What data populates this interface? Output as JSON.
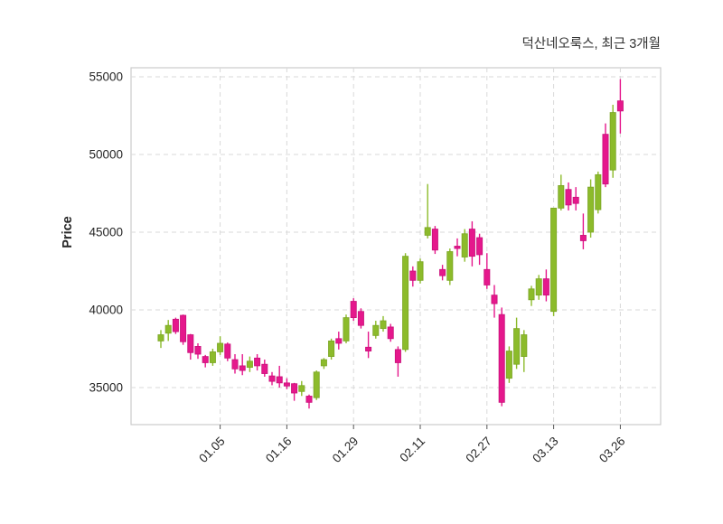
{
  "title": "덕산네오룩스, 최근 3개월",
  "y_axis": {
    "label": "Price",
    "ticks": [
      35000,
      40000,
      45000,
      50000,
      55000
    ]
  },
  "x_axis": {
    "tick_labels": [
      "01.05",
      "01.16",
      "01.29",
      "02.11",
      "02.27",
      "03.13",
      "03.26"
    ],
    "tick_indices": [
      8,
      17,
      26,
      35,
      44,
      53,
      62
    ]
  },
  "colors": {
    "up": "#8CBB2B",
    "up_border": "#7BA524",
    "down": "#E5188C",
    "down_border": "#C9107A",
    "grid": "#D9D9D9",
    "plot_border": "#CCCCCC",
    "text": "#262626"
  },
  "chart_data": {
    "type": "candlestick",
    "title": "덕산네오룩스, 최근 3개월",
    "ylabel": "Price",
    "ylim": [
      32600,
      55600
    ],
    "grid": "dashed-both",
    "columns": [
      "open",
      "high",
      "low",
      "close"
    ],
    "candles": [
      [
        38000,
        38700,
        37550,
        38400
      ],
      [
        38500,
        39350,
        38000,
        39000
      ],
      [
        39400,
        39500,
        38450,
        38600
      ],
      [
        39650,
        39700,
        37750,
        37950
      ],
      [
        38400,
        38450,
        36800,
        37250
      ],
      [
        37650,
        37850,
        36850,
        37150
      ],
      [
        37000,
        37100,
        36300,
        36600
      ],
      [
        36600,
        37500,
        36400,
        37300
      ],
      [
        37300,
        38300,
        37100,
        37850
      ],
      [
        37800,
        37900,
        36700,
        36900
      ],
      [
        36800,
        37150,
        35900,
        36200
      ],
      [
        36400,
        37150,
        35800,
        36100
      ],
      [
        36300,
        37000,
        36000,
        36700
      ],
      [
        36900,
        37150,
        36100,
        36400
      ],
      [
        36500,
        36800,
        35700,
        35900
      ],
      [
        35750,
        36000,
        35150,
        35400
      ],
      [
        35700,
        36400,
        35000,
        35300
      ],
      [
        35300,
        35600,
        34900,
        35100
      ],
      [
        35250,
        35300,
        34150,
        34650
      ],
      [
        34750,
        35420,
        34460,
        35130
      ],
      [
        34450,
        34550,
        33650,
        34050
      ],
      [
        34350,
        36100,
        34200,
        36000
      ],
      [
        36400,
        36900,
        36200,
        36800
      ],
      [
        37000,
        38150,
        36800,
        38000
      ],
      [
        38150,
        38600,
        37450,
        37850
      ],
      [
        38000,
        39700,
        37850,
        39500
      ],
      [
        40550,
        40750,
        39300,
        39500
      ],
      [
        39900,
        40100,
        38800,
        39000
      ],
      [
        37600,
        38600,
        36900,
        37350
      ],
      [
        38350,
        39300,
        38150,
        39000
      ],
      [
        38800,
        39600,
        38600,
        39300
      ],
      [
        38900,
        39100,
        37950,
        38150
      ],
      [
        37450,
        37650,
        35700,
        36600
      ],
      [
        37450,
        43650,
        37300,
        43450
      ],
      [
        42500,
        42800,
        41500,
        41900
      ],
      [
        41900,
        43300,
        41700,
        43100
      ],
      [
        44800,
        48100,
        44600,
        45300
      ],
      [
        45200,
        45400,
        43600,
        43850
      ],
      [
        42600,
        42900,
        41900,
        42200
      ],
      [
        41900,
        43950,
        41600,
        43750
      ],
      [
        44100,
        44600,
        43450,
        43950
      ],
      [
        43400,
        45200,
        43100,
        44900
      ],
      [
        45200,
        45700,
        42800,
        43450
      ],
      [
        44650,
        44900,
        42900,
        43550
      ],
      [
        42600,
        43650,
        41350,
        41600
      ],
      [
        40950,
        41600,
        39500,
        40400
      ],
      [
        39700,
        40150,
        33800,
        34050
      ],
      [
        35600,
        37650,
        35300,
        37350
      ],
      [
        36500,
        39500,
        36200,
        38800
      ],
      [
        37000,
        38700,
        36000,
        38400
      ],
      [
        40650,
        41550,
        40250,
        41350
      ],
      [
        40950,
        42250,
        40650,
        42000
      ],
      [
        42000,
        42600,
        40550,
        40950
      ],
      [
        39900,
        46550,
        39600,
        46550
      ],
      [
        46550,
        48700,
        46400,
        48000
      ],
      [
        47750,
        48200,
        46400,
        46750
      ],
      [
        47250,
        47900,
        46400,
        46850
      ],
      [
        44800,
        46200,
        43900,
        44450
      ],
      [
        45000,
        48400,
        44650,
        47900
      ],
      [
        46450,
        48900,
        46200,
        48700
      ],
      [
        51300,
        52000,
        47900,
        48100
      ],
      [
        49000,
        53200,
        48500,
        52700
      ],
      [
        53450,
        54850,
        51350,
        52800
      ]
    ]
  }
}
